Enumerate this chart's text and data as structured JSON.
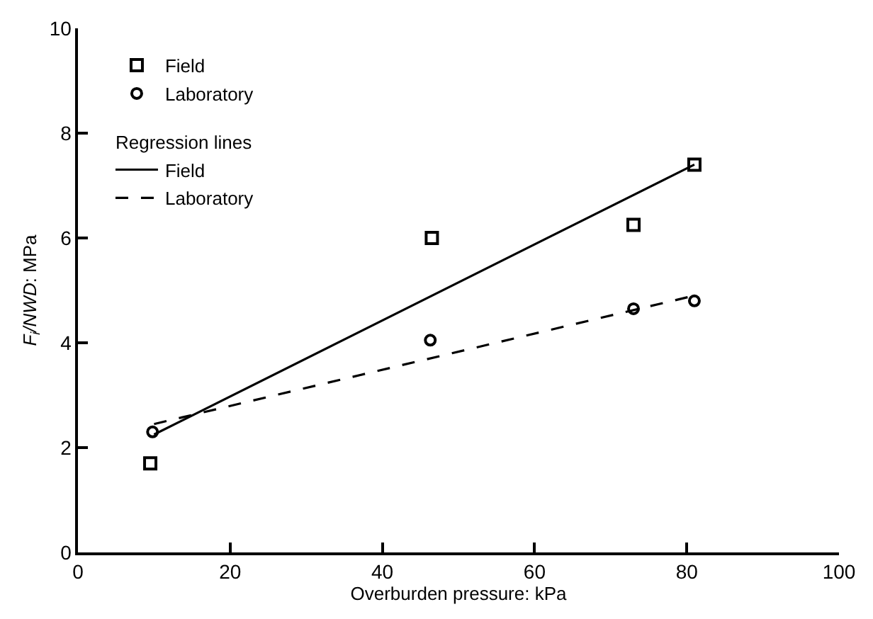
{
  "chart_data": {
    "type": "scatter",
    "xlabel": "Overburden pressure: kPa",
    "ylabel": "F$_{i}$/NWD: MPa",
    "legend_title": "Regression lines",
    "xlim": [
      0,
      100
    ],
    "xticks": [
      0,
      20,
      40,
      60,
      80,
      100
    ],
    "ylim": [
      0,
      10
    ],
    "yticks": [
      0,
      2,
      4,
      6,
      8,
      10
    ],
    "grid": false,
    "legend": "top left",
    "series": [
      {
        "name": "Field",
        "marker": "square",
        "color": "#000000",
        "x": [
          9.5,
          46.5,
          73,
          81
        ],
        "values": [
          1.7,
          6.0,
          6.25,
          7.4
        ]
      },
      {
        "name": "Laboratory",
        "marker": "circle",
        "color": "#000000",
        "x": [
          9.8,
          46.3,
          73,
          81
        ],
        "values": [
          2.3,
          4.05,
          4.65,
          4.8
        ]
      },
      {
        "name": "Field",
        "type": "line",
        "line_style": "solid",
        "color": "#000000",
        "x": [
          10,
          81
        ],
        "values": [
          2.25,
          7.4
        ]
      },
      {
        "name": "Laboratory",
        "type": "line",
        "line_style": "dashed",
        "color": "#000000",
        "x": [
          10,
          81
        ],
        "values": [
          2.45,
          4.9
        ]
      }
    ]
  }
}
